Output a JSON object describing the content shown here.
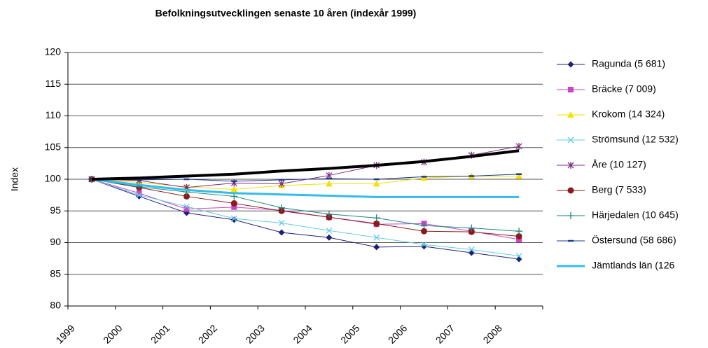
{
  "chart_data": {
    "type": "line",
    "title": "Befolkningsutvecklingen senaste 10 åren (indexår 1999)",
    "y_label": "Index",
    "categories": [
      "1999",
      "2000",
      "2001",
      "2002",
      "2003",
      "2004",
      "2005",
      "2006",
      "2007",
      "2008"
    ],
    "ylim": [
      80,
      120
    ],
    "yticks": [
      80,
      85,
      90,
      95,
      100,
      105,
      110,
      115,
      120
    ],
    "grid": true,
    "legend": "right",
    "series": [
      {
        "name": "Ragunda (5 681)",
        "color": "#1f1f7a",
        "marker": "diamond",
        "values": [
          100,
          97.3,
          94.7,
          93.6,
          91.6,
          90.8,
          89.3,
          89.4,
          88.4,
          87.4
        ]
      },
      {
        "name": "Bräcke (7 009)",
        "color": "#cc44cc",
        "marker": "square",
        "values": [
          100,
          97.8,
          95.3,
          95.6,
          95.1,
          94.0,
          92.9,
          93.0,
          91.8,
          90.5
        ]
      },
      {
        "name": "Krokom (14 324)",
        "color": "#f5e000",
        "marker": "triangle",
        "values": [
          100,
          99.5,
          98.8,
          98.4,
          99.0,
          99.3,
          99.3,
          100.2,
          100.5,
          100.5
        ]
      },
      {
        "name": "Strömsund (12 532)",
        "color": "#66ccdd",
        "marker": "x",
        "values": [
          100,
          97.5,
          95.7,
          93.8,
          93.1,
          91.9,
          90.8,
          89.7,
          88.9,
          87.9
        ]
      },
      {
        "name": "Åre (10 127)",
        "color": "#7b2a7b",
        "marker": "star",
        "values": [
          100,
          99.8,
          98.7,
          99.4,
          99.3,
          100.6,
          102.2,
          102.7,
          103.8,
          105.2
        ]
      },
      {
        "name": "Berg (7 533)",
        "color": "#8b1a1a",
        "marker": "circle",
        "values": [
          100,
          98.7,
          97.3,
          96.2,
          95.0,
          94.0,
          93.0,
          91.8,
          91.7,
          91.0
        ]
      },
      {
        "name": "Härjedalen (10 645)",
        "color": "#1a8a7a",
        "marker": "plus",
        "values": [
          100,
          98.8,
          98.0,
          97.3,
          95.5,
          94.5,
          93.9,
          92.7,
          92.3,
          91.8
        ]
      },
      {
        "name": "Östersund (58 686)",
        "color": "#1a3a8a",
        "marker": "dash",
        "values": [
          100,
          99.9,
          100.0,
          99.7,
          99.9,
          100.1,
          100.0,
          100.4,
          100.5,
          100.8
        ]
      },
      {
        "name": "Jämtlands län (126",
        "color": "#33bbee",
        "marker": "none",
        "width": 3,
        "values": [
          100,
          99.1,
          98.3,
          97.8,
          97.6,
          97.4,
          97.2,
          97.2,
          97.2,
          97.2
        ]
      },
      {
        "color": "#000000",
        "marker": "none",
        "width": 4,
        "values": [
          100,
          100.2,
          100.5,
          100.8,
          101.3,
          101.7,
          102.2,
          102.8,
          103.6,
          104.5
        ]
      }
    ]
  }
}
